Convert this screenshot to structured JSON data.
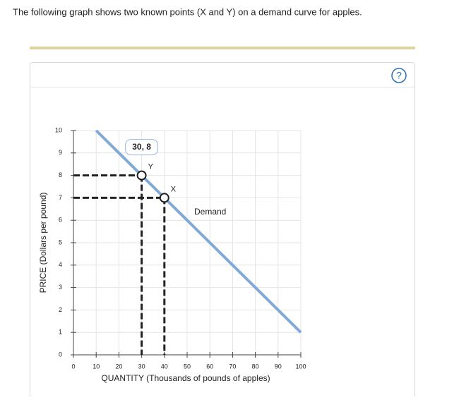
{
  "prompt": "The following graph shows two known points (X and Y) on a demand curve for apples.",
  "help_icon": "?",
  "chart_data": {
    "type": "line",
    "x_label": "QUANTITY (Thousands of pounds of apples)",
    "y_label": "PRICE (Dollars per pound)",
    "xlim": [
      0,
      100
    ],
    "xticks": [
      0,
      10,
      20,
      30,
      40,
      50,
      60,
      70,
      80,
      90,
      100
    ],
    "ylim": [
      0,
      10
    ],
    "yticks": [
      0,
      1,
      2,
      3,
      4,
      5,
      6,
      7,
      8,
      9,
      10
    ],
    "grid": true,
    "series": [
      {
        "name": "Demand",
        "color": "#80a9d8",
        "x": [
          10,
          100
        ],
        "values": [
          10,
          1
        ]
      }
    ],
    "points": [
      {
        "name": "Y",
        "x": 30,
        "y": 8
      },
      {
        "name": "X",
        "x": 40,
        "y": 7
      }
    ],
    "tooltip": "30, 8"
  }
}
